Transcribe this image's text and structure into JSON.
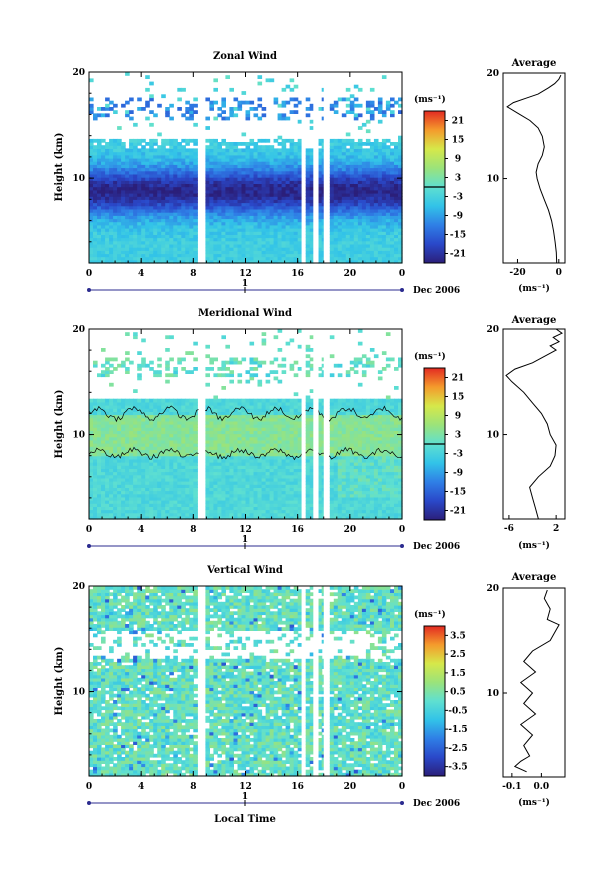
{
  "chart_data": [
    {
      "type": "heatmap",
      "title": "Zonal Wind",
      "ylabel": "Height (km)",
      "x_ticks": [
        "0",
        "4",
        "8",
        "12",
        "16",
        "20",
        "0"
      ],
      "y_ticks": [
        "10",
        "20"
      ],
      "date_marker": "1",
      "date_label": "Dec 2006",
      "ylim": [
        2,
        20
      ],
      "xlim": [
        0,
        24
      ],
      "colorbar": {
        "unit": "(ms⁻¹)",
        "ticks": [
          "21",
          "15",
          "9",
          "3",
          "-3",
          "-9",
          "-15",
          "-21"
        ],
        "range": [
          -24,
          24
        ]
      },
      "profile": {
        "title": "Average",
        "unit": "(ms⁻¹)",
        "x_ticks": [
          "-20",
          "0"
        ],
        "xlim": [
          -27,
          3
        ],
        "points": [
          [
            -1,
            2
          ],
          [
            -1.2,
            3
          ],
          [
            -1.8,
            4
          ],
          [
            -2.5,
            5
          ],
          [
            -3.5,
            6
          ],
          [
            -5,
            7
          ],
          [
            -7,
            8
          ],
          [
            -9,
            9
          ],
          [
            -10.5,
            10
          ],
          [
            -11,
            10.6
          ],
          [
            -10,
            11.4
          ],
          [
            -8,
            12.2
          ],
          [
            -7,
            13
          ],
          [
            -8,
            14
          ],
          [
            -10,
            14.8
          ],
          [
            -14,
            15.5
          ],
          [
            -20,
            16.2
          ],
          [
            -25,
            16.8
          ],
          [
            -22,
            17.2
          ],
          [
            -16,
            17.6
          ],
          [
            -10,
            18
          ],
          [
            -5,
            18.6
          ],
          [
            -2,
            19
          ],
          [
            0,
            19.4
          ],
          [
            1,
            19.8
          ]
        ]
      }
    },
    {
      "type": "heatmap",
      "title": "Meridional Wind",
      "ylabel": "Height (km)",
      "x_ticks": [
        "0",
        "4",
        "8",
        "12",
        "16",
        "20",
        "0"
      ],
      "y_ticks": [
        "10",
        "20"
      ],
      "date_marker": "1",
      "date_label": "Dec 2006",
      "ylim": [
        2,
        20
      ],
      "xlim": [
        0,
        24
      ],
      "colorbar": {
        "unit": "(ms⁻¹)",
        "ticks": [
          "21",
          "15",
          "9",
          "3",
          "-3",
          "-9",
          "-15",
          "-21"
        ],
        "range": [
          -24,
          24
        ]
      },
      "profile": {
        "title": "Average",
        "unit": "(ms⁻¹)",
        "x_ticks": [
          "-6",
          "2"
        ],
        "xlim": [
          -7,
          3.5
        ],
        "points": [
          [
            -1,
            2
          ],
          [
            -1.5,
            3
          ],
          [
            -2,
            4
          ],
          [
            -2.5,
            5
          ],
          [
            -1,
            6
          ],
          [
            1,
            7
          ],
          [
            1.8,
            8
          ],
          [
            2,
            9
          ],
          [
            1,
            10
          ],
          [
            0.5,
            11
          ],
          [
            -0.5,
            12
          ],
          [
            -2,
            13
          ],
          [
            -3.5,
            14
          ],
          [
            -5.5,
            15
          ],
          [
            -6.5,
            15.6
          ],
          [
            -5,
            16.2
          ],
          [
            -2,
            16.8
          ],
          [
            0,
            17.4
          ],
          [
            2,
            18
          ],
          [
            1,
            18.4
          ],
          [
            2.5,
            18.8
          ],
          [
            1.5,
            19.2
          ],
          [
            3,
            19.6
          ],
          [
            2,
            20
          ]
        ]
      }
    },
    {
      "type": "heatmap",
      "title": "Vertical Wind",
      "ylabel": "Height (km)",
      "xlabel": "Local Time",
      "x_ticks": [
        "0",
        "4",
        "8",
        "12",
        "16",
        "20",
        "0"
      ],
      "y_ticks": [
        "10",
        "20"
      ],
      "date_marker": "1",
      "date_label": "Dec 2006",
      "ylim": [
        2,
        20
      ],
      "xlim": [
        0,
        24
      ],
      "colorbar": {
        "unit": "(ms⁻¹)",
        "ticks": [
          "3.5",
          "2.5",
          "1.5",
          "0.5",
          "-0.5",
          "-1.5",
          "-2.5",
          "-3.5"
        ],
        "range": [
          -4,
          4
        ]
      },
      "profile": {
        "title": "Average",
        "unit": "(ms⁻¹)",
        "x_ticks": [
          "-0.1",
          "0.0"
        ],
        "xlim": [
          -0.13,
          0.08
        ],
        "points": [
          [
            -0.05,
            2.5
          ],
          [
            -0.09,
            3
          ],
          [
            -0.07,
            3.5
          ],
          [
            -0.04,
            4
          ],
          [
            -0.06,
            5
          ],
          [
            -0.03,
            6
          ],
          [
            -0.07,
            7
          ],
          [
            -0.02,
            8
          ],
          [
            -0.06,
            9
          ],
          [
            -0.03,
            10
          ],
          [
            -0.07,
            11
          ],
          [
            -0.02,
            12
          ],
          [
            -0.06,
            13
          ],
          [
            -0.03,
            14
          ],
          [
            0.03,
            15
          ],
          [
            0.05,
            16
          ],
          [
            0.06,
            16.5
          ],
          [
            0.02,
            17
          ],
          [
            0.03,
            18
          ],
          [
            0.01,
            19
          ],
          [
            0.02,
            19.8
          ]
        ]
      }
    }
  ]
}
